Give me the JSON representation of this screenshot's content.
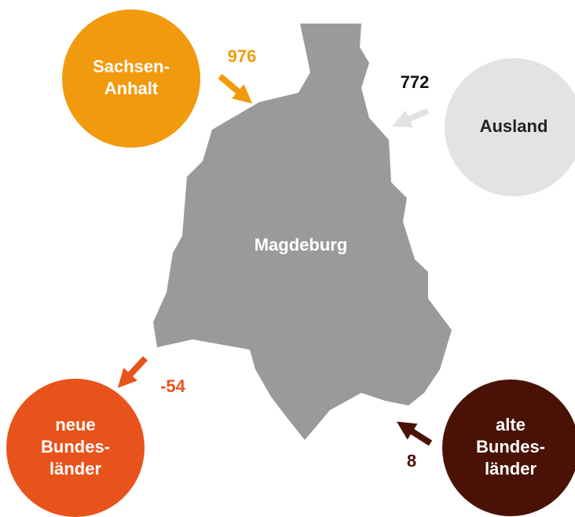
{
  "city": {
    "label": "Magdeburg"
  },
  "nodes": [
    {
      "label": [
        "Sachsen-",
        "Anhalt"
      ],
      "value": 976
    },
    {
      "label": [
        "Ausland"
      ],
      "value": 772
    },
    {
      "label": [
        "neue",
        "Bundes-",
        "länder"
      ],
      "value": -54
    },
    {
      "label": [
        "alte",
        "Bundes-",
        "länder"
      ],
      "value": 8
    }
  ]
}
